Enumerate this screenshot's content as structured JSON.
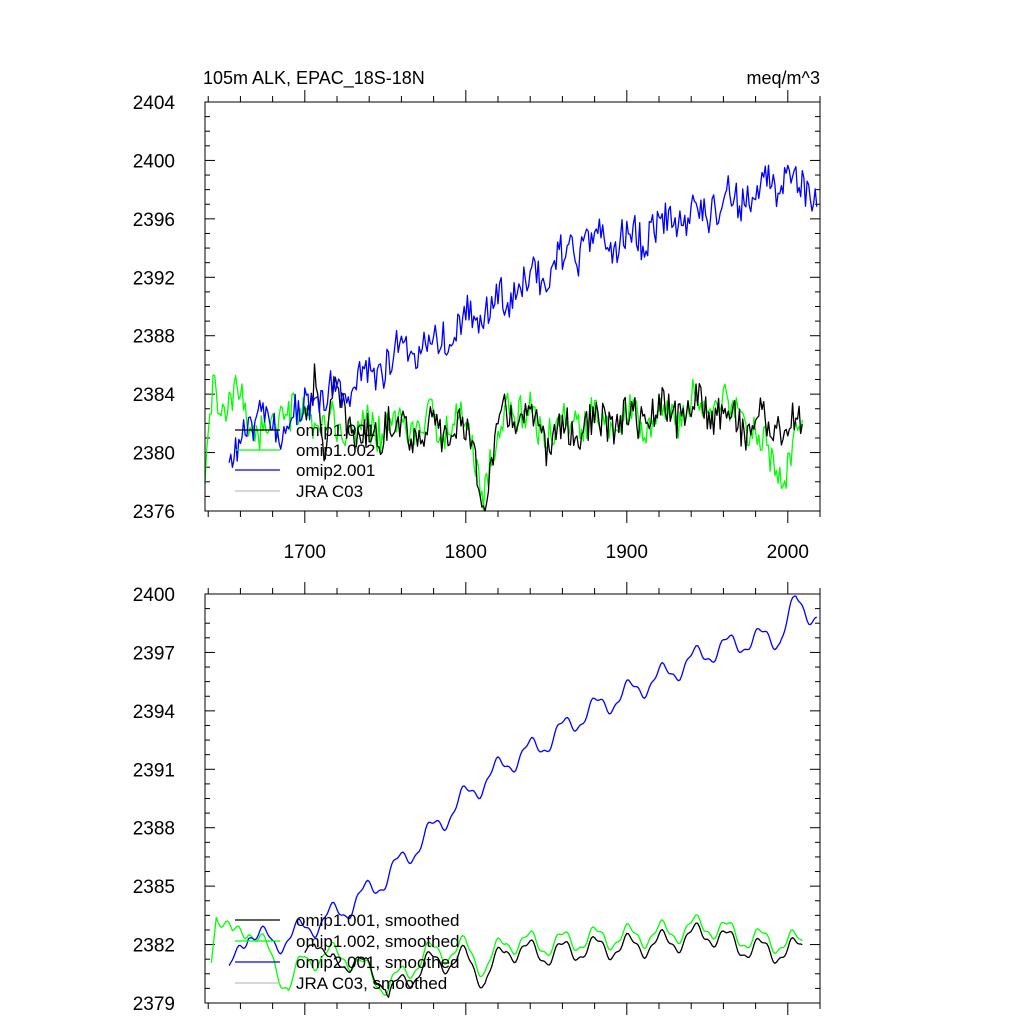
{
  "chart_data": [
    {
      "type": "line",
      "title": "105m ALK, EPAC_18S-18N",
      "units": "meq/m^3",
      "xlim": [
        1638,
        2020
      ],
      "ylim": [
        2376,
        2404
      ],
      "x_ticks": [
        1700,
        1800,
        1900,
        2000
      ],
      "y_ticks": [
        2376,
        2380,
        2384,
        2388,
        2392,
        2396,
        2400,
        2404
      ],
      "legend": [
        "omip1.001",
        "omip1.002",
        "omip2.001",
        "JRA C03"
      ],
      "series": [
        {
          "name": "omip1.001",
          "color": "#000000",
          "start_year": 1700,
          "end_year": 2009,
          "anchors": [
            [
              1700,
              2382.6
            ],
            [
              1706,
              2385.4
            ],
            [
              1712,
              2380.2
            ],
            [
              1720,
              2384.0
            ],
            [
              1735,
              2380.5
            ],
            [
              1750,
              2382.0
            ],
            [
              1775,
              2381.4
            ],
            [
              1800,
              2381.6
            ],
            [
              1812,
              2377.0
            ],
            [
              1825,
              2383.2
            ],
            [
              1850,
              2381.0
            ],
            [
              1875,
              2381.8
            ],
            [
              1900,
              2382.2
            ],
            [
              1950,
              2383.2
            ],
            [
              1975,
              2381.9
            ],
            [
              1985,
              2382.1
            ],
            [
              2009,
              2381.6
            ]
          ]
        },
        {
          "name": "omip1.002",
          "color": "#00ff00",
          "start_year": 1638,
          "end_year": 2009,
          "anchors": [
            [
              1638,
              2377.1
            ],
            [
              1643,
              2385.6
            ],
            [
              1650,
              2382.0
            ],
            [
              1660,
              2384.2
            ],
            [
              1672,
              2381.0
            ],
            [
              1688,
              2382.8
            ],
            [
              1700,
              2382.0
            ],
            [
              1725,
              2381.5
            ],
            [
              1750,
              2381.8
            ],
            [
              1775,
              2381.8
            ],
            [
              1800,
              2382.0
            ],
            [
              1812,
              2377.4
            ],
            [
              1825,
              2383.4
            ],
            [
              1850,
              2381.5
            ],
            [
              1875,
              2382.3
            ],
            [
              1900,
              2382.6
            ],
            [
              1925,
              2382.4
            ],
            [
              1950,
              2383.6
            ],
            [
              1975,
              2382.2
            ],
            [
              1998,
              2377.9
            ],
            [
              2009,
              2382.0
            ]
          ]
        },
        {
          "name": "omip2.001",
          "color": "#0000ff",
          "start_year": 1653,
          "end_year": 2018,
          "anchors": [
            [
              1653,
              2378.3
            ],
            [
              1665,
              2382.5
            ],
            [
              1680,
              2381.5
            ],
            [
              1700,
              2383.0
            ],
            [
              1725,
              2384.3
            ],
            [
              1750,
              2386.2
            ],
            [
              1775,
              2387.5
            ],
            [
              1800,
              2389.0
            ],
            [
              1825,
              2390.5
            ],
            [
              1850,
              2392.6
            ],
            [
              1875,
              2394.2
            ],
            [
              1900,
              2394.6
            ],
            [
              1925,
              2395.5
            ],
            [
              1950,
              2396.8
            ],
            [
              1975,
              2397.6
            ],
            [
              2000,
              2399.0
            ],
            [
              2018,
              2397.8
            ]
          ]
        },
        {
          "name": "JRA C03",
          "color": "#bfbfbf",
          "start_year": null,
          "end_year": null,
          "anchors": []
        }
      ]
    },
    {
      "type": "line",
      "title": "",
      "units": "",
      "xlim": [
        1638,
        2020
      ],
      "ylim": [
        2379,
        2400
      ],
      "x_ticks": [
        1700,
        1800,
        1900,
        2000
      ],
      "y_ticks": [
        2379,
        2382,
        2385,
        2388,
        2391,
        2394,
        2397,
        2400
      ],
      "legend": [
        "omip1.001, smoothed",
        "omip1.002, smoothed",
        "omip2.001, smoothed",
        "JRA C03, smoothed"
      ],
      "series": [
        {
          "name": "omip1.001, smoothed",
          "color": "#000000",
          "start_year": 1700,
          "end_year": 2009,
          "anchors": [
            [
              1700,
              2381.5
            ],
            [
              1706,
              2382.7
            ],
            [
              1716,
              2380.8
            ],
            [
              1730,
              2381.3
            ],
            [
              1740,
              2380.6
            ],
            [
              1750,
              2380.2
            ],
            [
              1752,
              2379.4
            ],
            [
              1775,
              2381.0
            ],
            [
              1800,
              2381.3
            ],
            [
              1812,
              2380.2
            ],
            [
              1825,
              2381.8
            ],
            [
              1850,
              2381.5
            ],
            [
              1875,
              2381.8
            ],
            [
              1900,
              2381.9
            ],
            [
              1925,
              2382.1
            ],
            [
              1950,
              2382.6
            ],
            [
              1975,
              2381.8
            ],
            [
              2000,
              2381.6
            ],
            [
              2009,
              2381.9
            ]
          ]
        },
        {
          "name": "omip1.002, smoothed",
          "color": "#00ff00",
          "start_year": 1642,
          "end_year": 2009,
          "anchors": [
            [
              1642,
              2381.5
            ],
            [
              1645,
              2383.8
            ],
            [
              1655,
              2382.3
            ],
            [
              1665,
              2383.0
            ],
            [
              1680,
              2381.2
            ],
            [
              1690,
              2379.8
            ],
            [
              1695,
              2380.5
            ],
            [
              1700,
              2381.3
            ],
            [
              1725,
              2381.5
            ],
            [
              1740,
              2380.5
            ],
            [
              1752,
              2379.8
            ],
            [
              1775,
              2381.5
            ],
            [
              1800,
              2381.8
            ],
            [
              1812,
              2380.8
            ],
            [
              1825,
              2382.2
            ],
            [
              1850,
              2382.0
            ],
            [
              1875,
              2382.3
            ],
            [
              1900,
              2382.4
            ],
            [
              1925,
              2382.6
            ],
            [
              1950,
              2383.0
            ],
            [
              1975,
              2382.3
            ],
            [
              2000,
              2382.1
            ],
            [
              2009,
              2382.1
            ]
          ]
        },
        {
          "name": "omip2.001, smoothed",
          "color": "#0000ff",
          "start_year": 1653,
          "end_year": 2018,
          "anchors": [
            [
              1653,
              2380.4
            ],
            [
              1665,
              2382.8
            ],
            [
              1680,
              2382.0
            ],
            [
              1700,
              2382.8
            ],
            [
              1725,
              2383.8
            ],
            [
              1750,
              2385.4
            ],
            [
              1775,
              2387.5
            ],
            [
              1800,
              2389.6
            ],
            [
              1825,
              2391.3
            ],
            [
              1850,
              2392.4
            ],
            [
              1875,
              2393.9
            ],
            [
              1900,
              2394.9
            ],
            [
              1925,
              2395.9
            ],
            [
              1950,
              2397.0
            ],
            [
              1975,
              2397.6
            ],
            [
              1995,
              2397.8
            ],
            [
              2005,
              2399.5
            ],
            [
              2018,
              2398.9
            ]
          ]
        },
        {
          "name": "JRA C03, smoothed",
          "color": "#bfbfbf",
          "start_year": null,
          "end_year": null,
          "anchors": []
        }
      ]
    }
  ]
}
